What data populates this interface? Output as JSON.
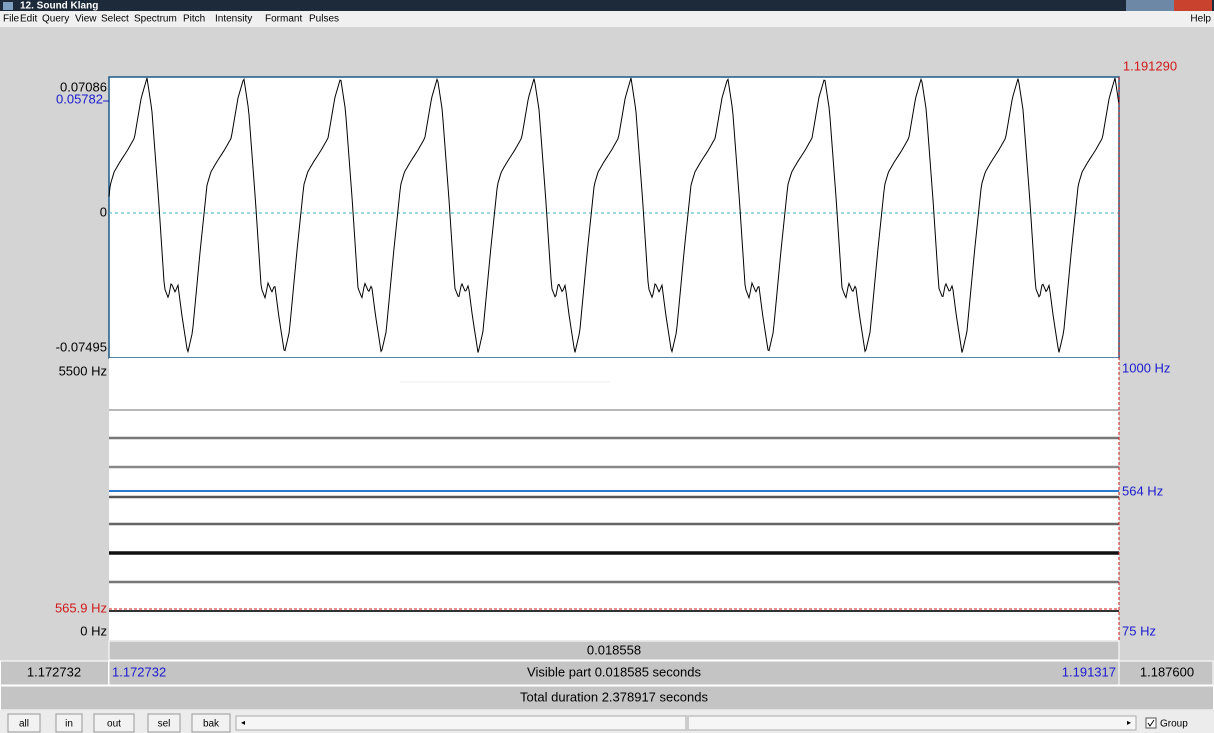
{
  "window": {
    "title": "12. Sound Klang"
  },
  "menu": {
    "items": [
      "File",
      "Edit",
      "Query",
      "View",
      "Select",
      "Spectrum",
      "Pitch",
      "Intensity",
      "Formant",
      "Pulses"
    ],
    "help": "Help"
  },
  "waveform": {
    "cursor_time": "1.191290",
    "max": "0.07086",
    "cursor_value": "0.05782",
    "zero": "0",
    "min": "-0.07495"
  },
  "spectrogram": {
    "top": "5500 Hz",
    "cursor_freq": "565.9 Hz",
    "bottom": "0 Hz",
    "pitch_top": "1000 Hz",
    "pitch_value": "564 Hz",
    "pitch_bottom": "75 Hz"
  },
  "timeline": {
    "selection": "0.018558",
    "left_outer": "1.172732",
    "left_visible": "1.172732",
    "visible": "Visible part 0.018585 seconds",
    "right_visible": "1.191317",
    "right_outer": "1.187600",
    "total": "Total duration 2.378917 seconds"
  },
  "buttons": [
    "all",
    "in",
    "out",
    "sel",
    "bak"
  ],
  "group": "Group"
}
